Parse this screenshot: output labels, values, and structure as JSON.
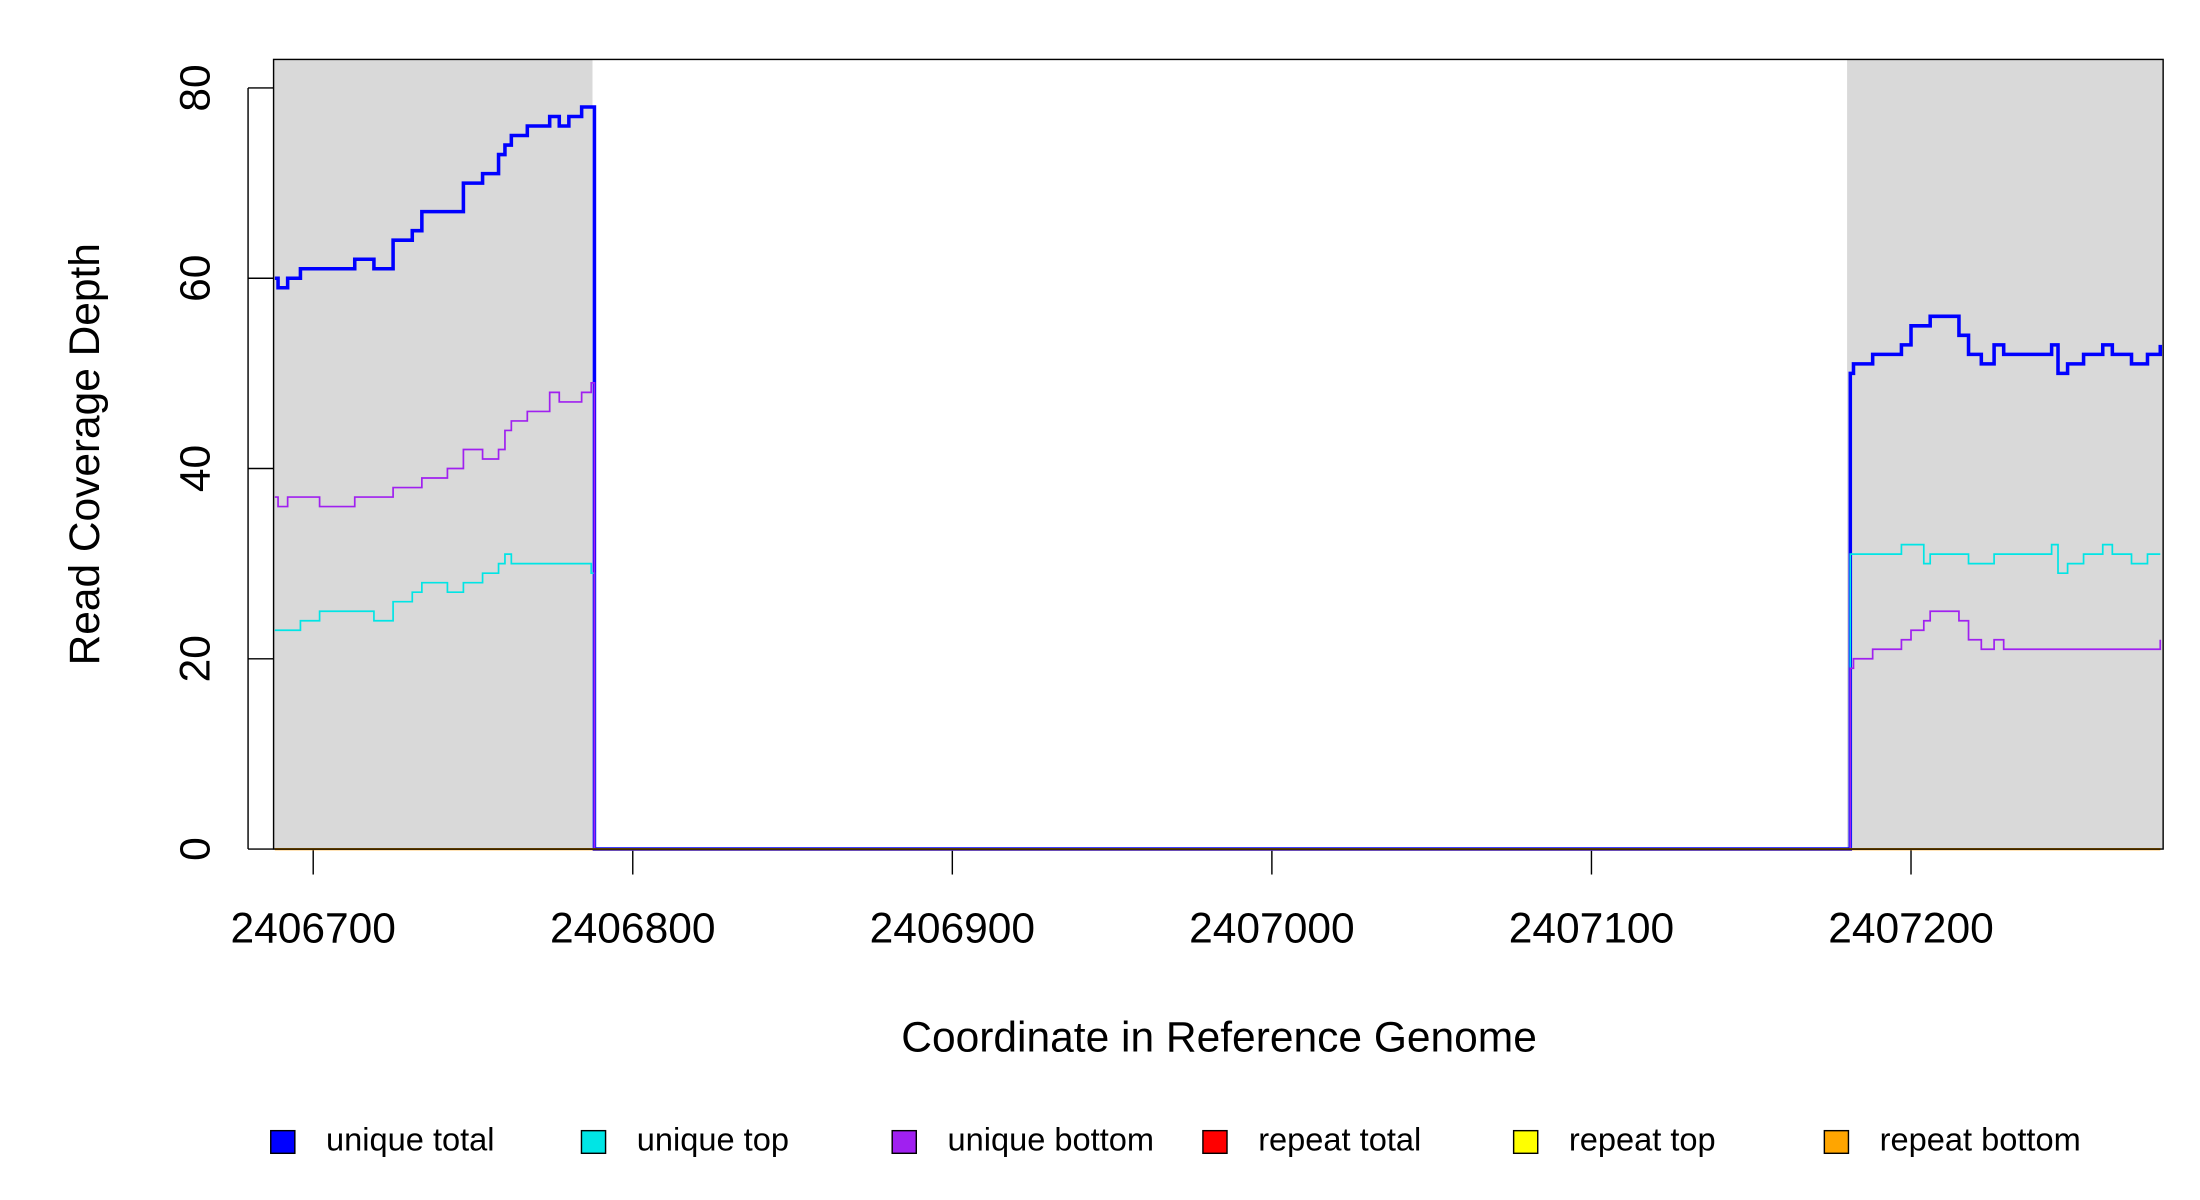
{
  "chart_data": {
    "type": "line",
    "step": true,
    "xlabel": "Coordinate in Reference Genome",
    "ylabel": "Read Coverage Depth",
    "xlim": [
      2406687.6,
      2407278.9
    ],
    "ylim": [
      0,
      83
    ],
    "xticks": [
      2406700,
      2406800,
      2406900,
      2407000,
      2407100,
      2407200
    ],
    "yticks": [
      0,
      20,
      40,
      60,
      80
    ],
    "shaded_regions": [
      [
        2406687.6,
        2406787.4
      ],
      [
        2407180,
        2407278.9
      ]
    ],
    "shade_color": "#d9d9d9",
    "x": [
      2406688,
      2406689,
      2406692,
      2406696,
      2406702,
      2406713,
      2406719,
      2406725,
      2406731,
      2406734,
      2406742,
      2406747,
      2406753,
      2406758,
      2406760,
      2406762,
      2406767,
      2406774,
      2406777,
      2406780,
      2406784,
      2406787,
      2406788,
      2407180,
      2407181,
      2407182,
      2407188,
      2407197,
      2407200,
      2407204,
      2407206,
      2407215,
      2407218,
      2407222,
      2407226,
      2407229,
      2407244,
      2407246,
      2407249,
      2407254,
      2407260,
      2407263,
      2407269,
      2407274,
      2407278
    ],
    "series": [
      {
        "name": "unique total",
        "color": "#0000ff",
        "width": 2.5,
        "values": [
          60,
          59,
          60,
          61,
          61,
          62,
          61,
          64,
          65,
          67,
          67,
          70,
          71,
          73,
          74,
          75,
          76,
          77,
          76,
          77,
          78,
          78,
          0,
          0,
          50,
          51,
          52,
          53,
          55,
          55,
          56,
          54,
          52,
          51,
          53,
          52,
          53,
          50,
          51,
          52,
          53,
          52,
          51,
          52,
          53
        ]
      },
      {
        "name": "unique top",
        "color": "#00e5e5",
        "width": 1.2,
        "values": [
          23,
          23,
          23,
          24,
          25,
          25,
          24,
          26,
          27,
          28,
          27,
          28,
          29,
          30,
          31,
          30,
          30,
          30,
          30,
          30,
          30,
          29,
          0,
          0,
          31,
          31,
          31,
          32,
          32,
          30,
          31,
          31,
          30,
          30,
          31,
          31,
          32,
          29,
          30,
          31,
          32,
          31,
          30,
          31,
          31
        ]
      },
      {
        "name": "unique bottom",
        "color": "#a020f0",
        "width": 1.2,
        "values": [
          37,
          36,
          37,
          37,
          36,
          37,
          37,
          38,
          38,
          39,
          40,
          42,
          41,
          42,
          44,
          45,
          46,
          48,
          47,
          47,
          48,
          49,
          0,
          0,
          19,
          20,
          21,
          22,
          23,
          24,
          25,
          24,
          22,
          21,
          22,
          21,
          21,
          21,
          21,
          21,
          21,
          21,
          21,
          21,
          22
        ]
      },
      {
        "name": "repeat total",
        "color": "#ff0000",
        "width": 1.5,
        "values": [
          0,
          0,
          0,
          0,
          0,
          0,
          0,
          0,
          0,
          0,
          0,
          0,
          0,
          0,
          0,
          0,
          0,
          0,
          0,
          0,
          0,
          0,
          0,
          0,
          0,
          0,
          0,
          0,
          0,
          0,
          0,
          0,
          0,
          0,
          0,
          0,
          0,
          0,
          0,
          0,
          0,
          0,
          0,
          0,
          0
        ]
      },
      {
        "name": "repeat top",
        "color": "#ffff00",
        "width": 1.5,
        "values": [
          0,
          0,
          0,
          0,
          0,
          0,
          0,
          0,
          0,
          0,
          0,
          0,
          0,
          0,
          0,
          0,
          0,
          0,
          0,
          0,
          0,
          0,
          0,
          0,
          0,
          0,
          0,
          0,
          0,
          0,
          0,
          0,
          0,
          0,
          0,
          0,
          0,
          0,
          0,
          0,
          0,
          0,
          0,
          0,
          0
        ]
      },
      {
        "name": "repeat bottom",
        "color": "#ffa500",
        "width": 1.5,
        "values": [
          0,
          0,
          0,
          0,
          0,
          0,
          0,
          0,
          0,
          0,
          0,
          0,
          0,
          0,
          0,
          0,
          0,
          0,
          0,
          0,
          0,
          0,
          0,
          0,
          0,
          0,
          0,
          0,
          0,
          0,
          0,
          0,
          0,
          0,
          0,
          0,
          0,
          0,
          0,
          0,
          0,
          0,
          0,
          0,
          0
        ]
      }
    ],
    "legend": "bottom"
  }
}
